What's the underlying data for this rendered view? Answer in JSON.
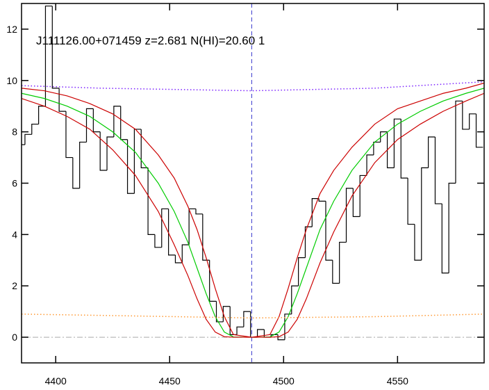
{
  "chart_data": {
    "type": "line",
    "annotation": "J111126.00+071459 z=2.681 N(HI)=20.60 1",
    "xlim": [
      4385,
      4588
    ],
    "ylim": [
      -1,
      13
    ],
    "xticks": [
      4400,
      4450,
      4500,
      4550
    ],
    "yticks": [
      0,
      2,
      4,
      6,
      8,
      10,
      12
    ],
    "reference_line": 0,
    "reference_line_color": "#aaaaaa",
    "vline": 4486,
    "vline_color": "#3333cc",
    "series": [
      {
        "style": "step",
        "color": "#000000",
        "x": [
          4385,
          4388,
          4391,
          4394,
          4397,
          4400,
          4403,
          4406,
          4409,
          4412,
          4415,
          4418,
          4421,
          4424,
          4427,
          4430,
          4433,
          4436,
          4439,
          4442,
          4445,
          4448,
          4451,
          4454,
          4457,
          4460,
          4463,
          4466,
          4469,
          4472,
          4475,
          4478,
          4481,
          4484,
          4487,
          4490,
          4493,
          4496,
          4499,
          4502,
          4505,
          4508,
          4511,
          4514,
          4517,
          4520,
          4523,
          4526,
          4529,
          4532,
          4535,
          4538,
          4541,
          4544,
          4547,
          4550,
          4553,
          4556,
          4559,
          4562,
          4565,
          4568,
          4571,
          4574,
          4577,
          4580,
          4583,
          4586
        ],
        "values": [
          7.5,
          7.9,
          8.3,
          9.0,
          12.9,
          9.7,
          8.8,
          7.0,
          5.8,
          7.6,
          8.9,
          8.0,
          6.5,
          7.8,
          9.0,
          7.7,
          5.6,
          8.1,
          6.6,
          4.0,
          3.5,
          5.0,
          3.2,
          2.9,
          3.6,
          5.0,
          4.8,
          3.0,
          1.4,
          0.6,
          1.2,
          0.1,
          0.4,
          1.0,
          0,
          0.3,
          0,
          0.1,
          -0.1,
          0.9,
          2.0,
          3.1,
          4.3,
          5.4,
          5.3,
          3.0,
          2.1,
          3.7,
          5.8,
          4.7,
          6.3,
          7.1,
          7.6,
          8.0,
          6.6,
          8.5,
          6.2,
          4.4,
          3.0,
          6.6,
          7.8,
          5.2,
          2.5,
          6.0,
          9.2,
          8.1,
          8.7,
          7.4
        ]
      },
      {
        "style": "solid",
        "color": "#00cc00",
        "x": [
          4385,
          4395,
          4405,
          4415,
          4425,
          4435,
          4445,
          4452,
          4458,
          4462,
          4466,
          4470,
          4474,
          4478,
          4486,
          4494,
          4498,
          4502,
          4506,
          4510,
          4516,
          4522,
          4530,
          4540,
          4550,
          4560,
          4570,
          4580,
          4588
        ],
        "values": [
          9.5,
          9.3,
          9.0,
          8.6,
          8.0,
          7.2,
          6.0,
          4.9,
          3.7,
          2.7,
          1.7,
          0.8,
          0.2,
          0.01,
          0,
          0.01,
          0.2,
          0.8,
          1.7,
          2.7,
          4.2,
          5.3,
          6.5,
          7.6,
          8.3,
          8.8,
          9.2,
          9.5,
          9.7
        ]
      },
      {
        "style": "solid",
        "color": "#cc0000",
        "x": [
          4385,
          4395,
          4405,
          4415,
          4425,
          4435,
          4445,
          4452,
          4458,
          4462,
          4466,
          4470,
          4474,
          4478,
          4486,
          4494,
          4498,
          4502,
          4506,
          4510,
          4516,
          4522,
          4530,
          4540,
          4550,
          4560,
          4570,
          4580,
          4588
        ],
        "values": [
          9.7,
          9.6,
          9.4,
          9.1,
          8.7,
          8.1,
          7.1,
          6.2,
          5.1,
          4.2,
          3.1,
          1.9,
          0.8,
          0.1,
          0,
          0.1,
          0.8,
          1.9,
          3.1,
          4.2,
          5.6,
          6.5,
          7.4,
          8.3,
          8.9,
          9.2,
          9.5,
          9.7,
          9.9
        ]
      },
      {
        "style": "solid",
        "color": "#cc0000",
        "x": [
          4385,
          4395,
          4405,
          4415,
          4425,
          4435,
          4445,
          4452,
          4458,
          4462,
          4466,
          4470,
          4474,
          4478,
          4486,
          4494,
          4498,
          4502,
          4506,
          4510,
          4516,
          4522,
          4530,
          4540,
          4550,
          4560,
          4570,
          4580,
          4588
        ],
        "values": [
          9.3,
          9.0,
          8.6,
          8.1,
          7.3,
          6.3,
          4.9,
          3.6,
          2.4,
          1.5,
          0.7,
          0.2,
          0.02,
          0,
          0,
          0,
          0.02,
          0.2,
          0.7,
          1.5,
          2.9,
          4.1,
          5.5,
          6.8,
          7.7,
          8.3,
          8.8,
          9.2,
          9.5
        ]
      },
      {
        "style": "dotted",
        "color": "#7a1fff",
        "x": [
          4385,
          4420,
          4486,
          4540,
          4588
        ],
        "values": [
          9.8,
          9.7,
          9.6,
          9.7,
          9.95
        ]
      },
      {
        "style": "dotted",
        "color": "#ff9933",
        "x": [
          4385,
          4420,
          4486,
          4540,
          4588
        ],
        "values": [
          0.9,
          0.85,
          0.75,
          0.8,
          0.9
        ]
      }
    ]
  }
}
